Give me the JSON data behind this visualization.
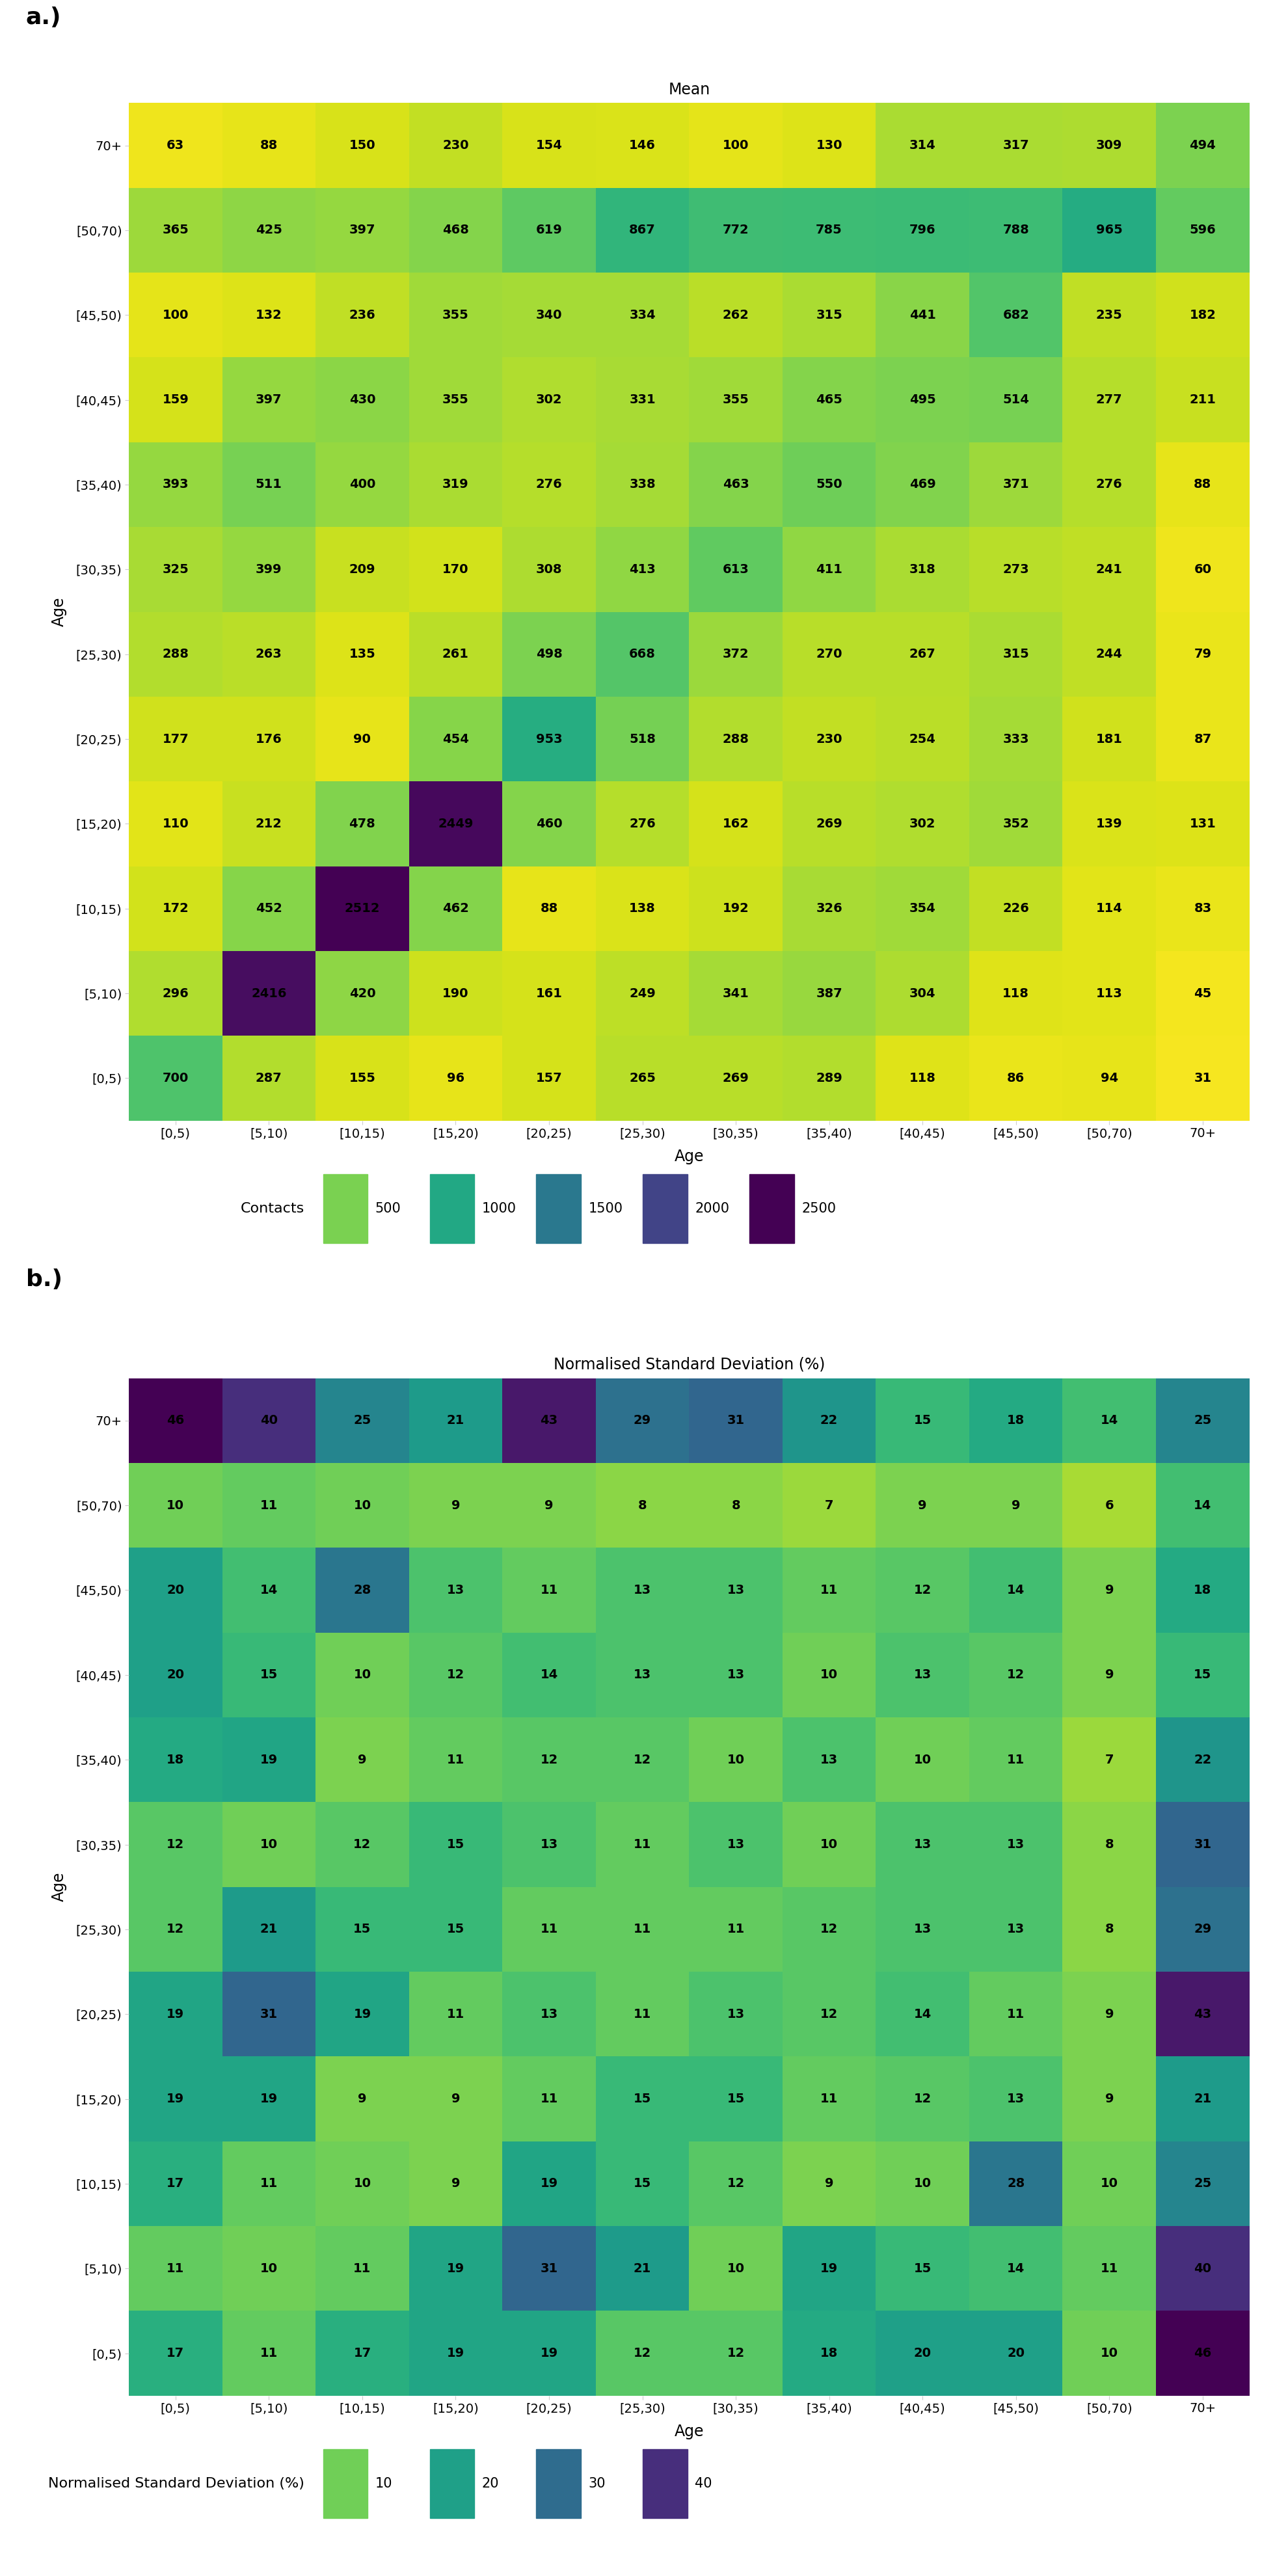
{
  "age_labels": [
    "[0,5)",
    "[5,10)",
    "[10,15)",
    "[15,20)",
    "[20,25)",
    "[25,30)",
    "[30,35)",
    "[35,40)",
    "[40,45)",
    "[45,50)",
    "[50,70)",
    "70+"
  ],
  "age_labels_y": [
    "[0,5)",
    "[5,10)",
    "[10,15)",
    "[15,20)",
    "[20,25)",
    "[25,30)",
    "[30,35)",
    "[35,40)",
    "[40,45)",
    "[45,50)",
    "[50,70)",
    "70+"
  ],
  "mean_matrix_rowbottom": [
    [
      700,
      287,
      155,
      96,
      157,
      265,
      269,
      289,
      118,
      86,
      94,
      31
    ],
    [
      296,
      2416,
      420,
      190,
      161,
      249,
      341,
      387,
      304,
      118,
      113,
      45
    ],
    [
      172,
      452,
      2512,
      462,
      88,
      138,
      192,
      326,
      354,
      226,
      114,
      83
    ],
    [
      110,
      212,
      478,
      2449,
      460,
      276,
      162,
      269,
      302,
      352,
      139,
      131
    ],
    [
      177,
      176,
      90,
      454,
      953,
      518,
      288,
      230,
      254,
      333,
      181,
      87
    ],
    [
      288,
      263,
      135,
      261,
      498,
      668,
      372,
      270,
      267,
      315,
      244,
      79
    ],
    [
      325,
      399,
      209,
      170,
      308,
      413,
      613,
      411,
      318,
      273,
      241,
      60
    ],
    [
      393,
      511,
      400,
      319,
      276,
      338,
      463,
      550,
      469,
      371,
      276,
      88
    ],
    [
      159,
      397,
      430,
      355,
      302,
      331,
      355,
      465,
      495,
      514,
      277,
      211
    ],
    [
      100,
      132,
      236,
      355,
      340,
      334,
      262,
      315,
      441,
      682,
      235,
      182
    ],
    [
      365,
      425,
      397,
      468,
      619,
      867,
      772,
      785,
      796,
      788,
      965,
      596
    ],
    [
      63,
      88,
      150,
      230,
      154,
      146,
      100,
      130,
      314,
      317,
      309,
      494
    ]
  ],
  "std_matrix_rowbottom": [
    [
      17,
      11,
      17,
      19,
      19,
      12,
      12,
      18,
      20,
      20,
      10,
      46
    ],
    [
      11,
      10,
      11,
      19,
      31,
      21,
      10,
      19,
      15,
      14,
      11,
      40
    ],
    [
      17,
      11,
      10,
      9,
      19,
      15,
      12,
      9,
      10,
      28,
      10,
      25
    ],
    [
      19,
      19,
      9,
      9,
      11,
      15,
      15,
      11,
      12,
      13,
      9,
      21
    ],
    [
      19,
      31,
      19,
      11,
      13,
      11,
      13,
      12,
      14,
      11,
      9,
      43
    ],
    [
      12,
      21,
      15,
      15,
      11,
      11,
      11,
      12,
      13,
      13,
      8,
      29
    ],
    [
      12,
      10,
      12,
      15,
      13,
      11,
      13,
      10,
      13,
      13,
      8,
      31
    ],
    [
      18,
      19,
      9,
      11,
      12,
      12,
      10,
      13,
      10,
      11,
      7,
      22
    ],
    [
      20,
      15,
      10,
      12,
      14,
      13,
      13,
      10,
      13,
      12,
      9,
      15
    ],
    [
      20,
      14,
      28,
      13,
      11,
      13,
      13,
      11,
      12,
      14,
      9,
      18
    ],
    [
      10,
      11,
      10,
      9,
      9,
      8,
      8,
      7,
      9,
      9,
      6,
      14
    ],
    [
      46,
      40,
      25,
      21,
      43,
      29,
      31,
      22,
      15,
      18,
      14,
      25
    ]
  ],
  "mean_vmin": 0,
  "mean_vmax": 2500,
  "std_vmin": 0,
  "std_vmax": 46,
  "title_a": "Mean",
  "title_b": "Normalised Standard Deviation (%)",
  "xlabel": "Age",
  "ylabel": "Age",
  "label_a": "a.)",
  "label_b": "b.)",
  "legend_contacts_label": "Contacts",
  "legend_contacts_values": [
    500,
    1000,
    1500,
    2000,
    2500
  ],
  "legend_std_label": "Normalised Standard Deviation (%)",
  "legend_std_values": [
    10,
    20,
    30,
    40
  ]
}
